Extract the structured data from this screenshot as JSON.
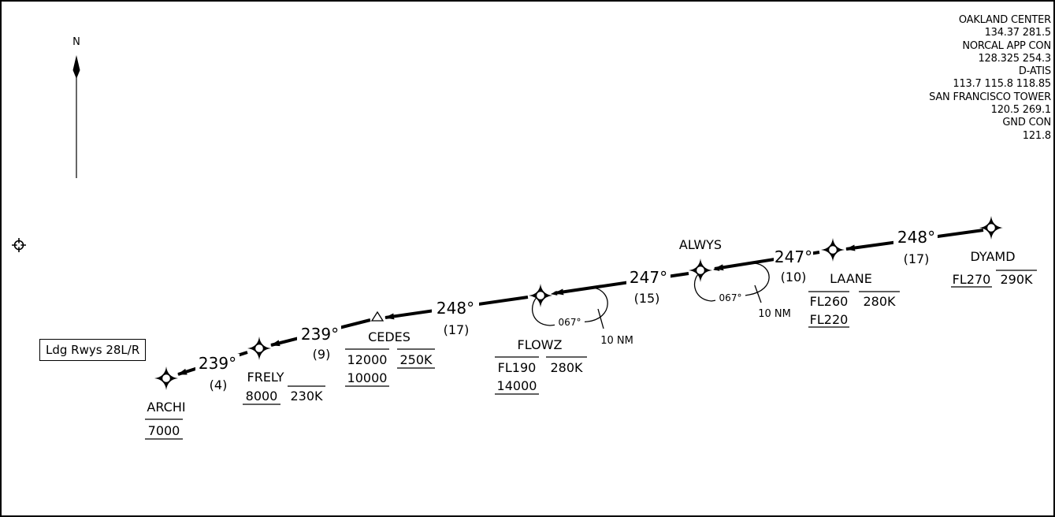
{
  "north_label": "N",
  "runway_note": "Ldg Rwys 28L/R",
  "frequencies": [
    {
      "name": "OAKLAND CENTER",
      "freq": "134.37  281.5"
    },
    {
      "name": "NORCAL APP CON",
      "freq": "128.325  254.3"
    },
    {
      "name": "D-ATIS",
      "freq": "113.7  115.8  118.85"
    },
    {
      "name": "SAN FRANCISCO TOWER",
      "freq": "120.5  269.1"
    },
    {
      "name": "GND CON",
      "freq": "121.8"
    }
  ],
  "fixes": [
    {
      "name": "DYAMD",
      "alt_top": "FL270",
      "alt_bottom": "",
      "speed": "290K"
    },
    {
      "name": "LAANE",
      "alt_top": "FL260",
      "alt_bottom": "FL220",
      "speed": "280K"
    },
    {
      "name": "ALWYS",
      "alt_top": "",
      "alt_bottom": "",
      "speed": ""
    },
    {
      "name": "FLOWZ",
      "alt_top": "FL190",
      "alt_bottom": "14000",
      "speed": "280K"
    },
    {
      "name": "CEDES",
      "alt_top": "12000",
      "alt_bottom": "10000",
      "speed": "250K"
    },
    {
      "name": "FRELY",
      "alt_top": "8000",
      "alt_bottom": "",
      "speed": "230K"
    },
    {
      "name": "ARCHI",
      "alt_top": "7000",
      "alt_bottom": "",
      "speed": ""
    }
  ],
  "legs": [
    {
      "course": "248°",
      "distance": "(17)"
    },
    {
      "course": "247°",
      "distance": "(10)"
    },
    {
      "course": "247°",
      "distance": "(15)"
    },
    {
      "course": "248°",
      "distance": "(17)"
    },
    {
      "course": "239°",
      "distance": "(9)"
    },
    {
      "course": "239°",
      "distance": "(4)"
    }
  ],
  "holds": [
    {
      "course": "067°",
      "leg": "10 NM"
    },
    {
      "course": "067°",
      "leg": "10 NM"
    }
  ]
}
